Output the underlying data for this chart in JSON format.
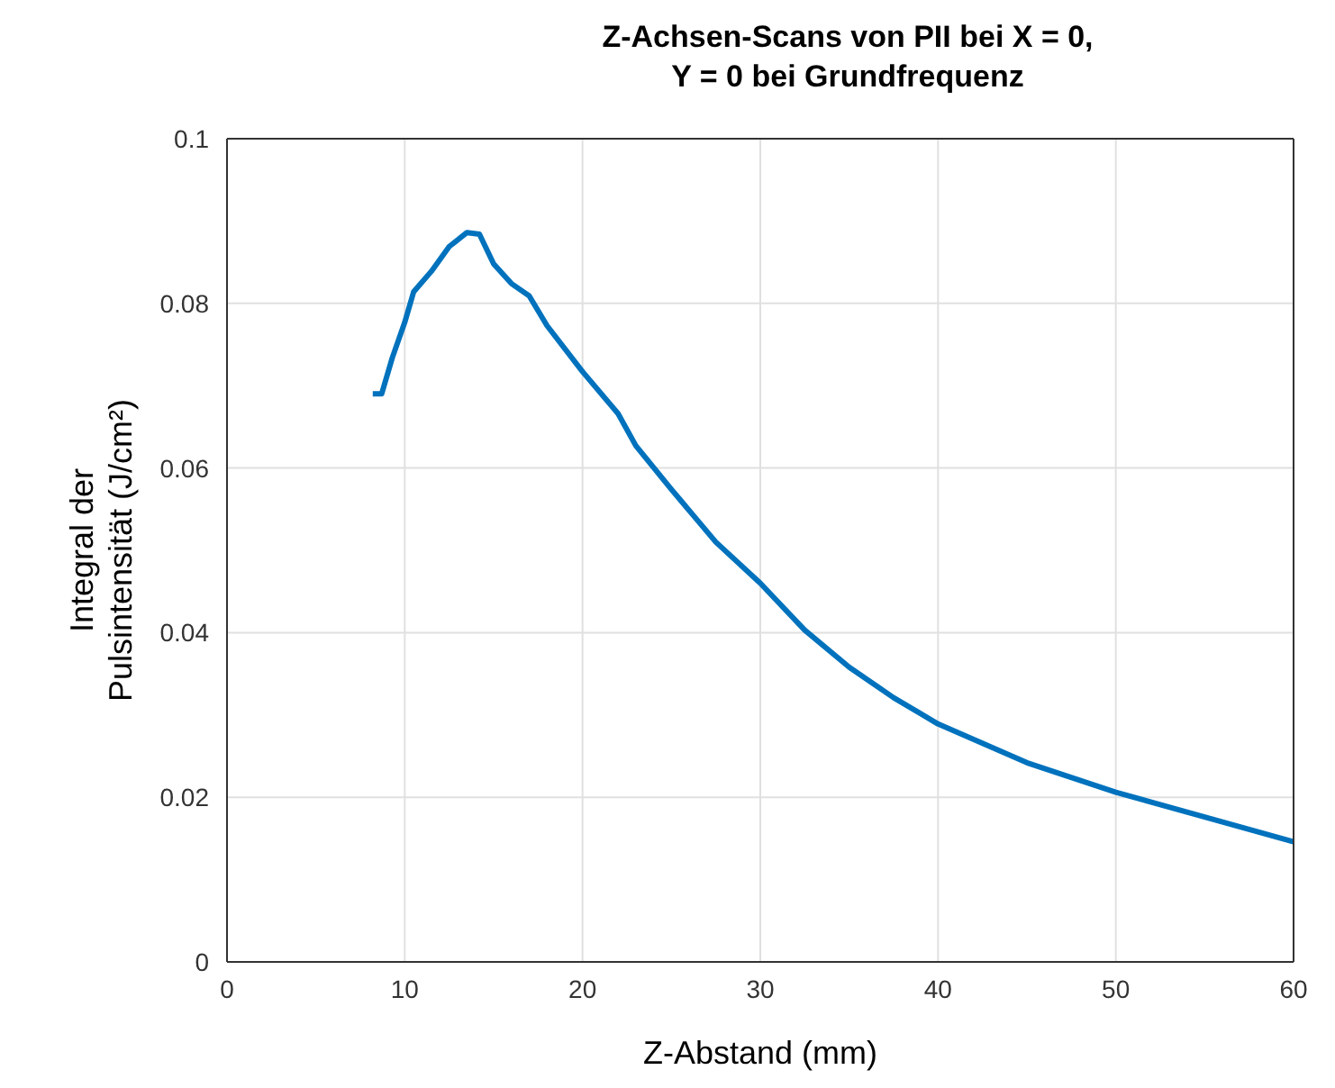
{
  "chart_data": {
    "type": "line",
    "title": "Z-Achsen-Scans von PII bei X = 0,\nY = 0 bei Grundfrequenz",
    "xlabel": "Z-Abstand (mm)",
    "ylabel": "Integral der\nPulsintensität (J/cm²)",
    "x": [
      8.2,
      8.7,
      9.3,
      10,
      10.5,
      11.5,
      12.5,
      13.5,
      14.2,
      15,
      16,
      17,
      18,
      20,
      22,
      23,
      25,
      27.5,
      30,
      32.5,
      35,
      37.5,
      40,
      45,
      50,
      55,
      60
    ],
    "series": [
      {
        "color": "#0072bd",
        "values": [
          0.069,
          0.069,
          0.0734,
          0.0777,
          0.0814,
          0.0839,
          0.0869,
          0.0886,
          0.0884,
          0.0848,
          0.0824,
          0.0809,
          0.0773,
          0.0717,
          0.0666,
          0.0627,
          0.0574,
          0.051,
          0.046,
          0.0403,
          0.0358,
          0.0321,
          0.0289,
          0.0242,
          0.0206,
          0.0176,
          0.0146
        ]
      }
    ],
    "xlim": [
      0,
      60
    ],
    "xticks": [
      0,
      10,
      20,
      30,
      40,
      50,
      60
    ],
    "ylim": [
      0,
      0.1
    ],
    "yticks": [
      0,
      0.02,
      0.04,
      0.06,
      0.08,
      0.1
    ],
    "grid": true,
    "legend": false,
    "marker": "none",
    "line_style": "solid"
  }
}
